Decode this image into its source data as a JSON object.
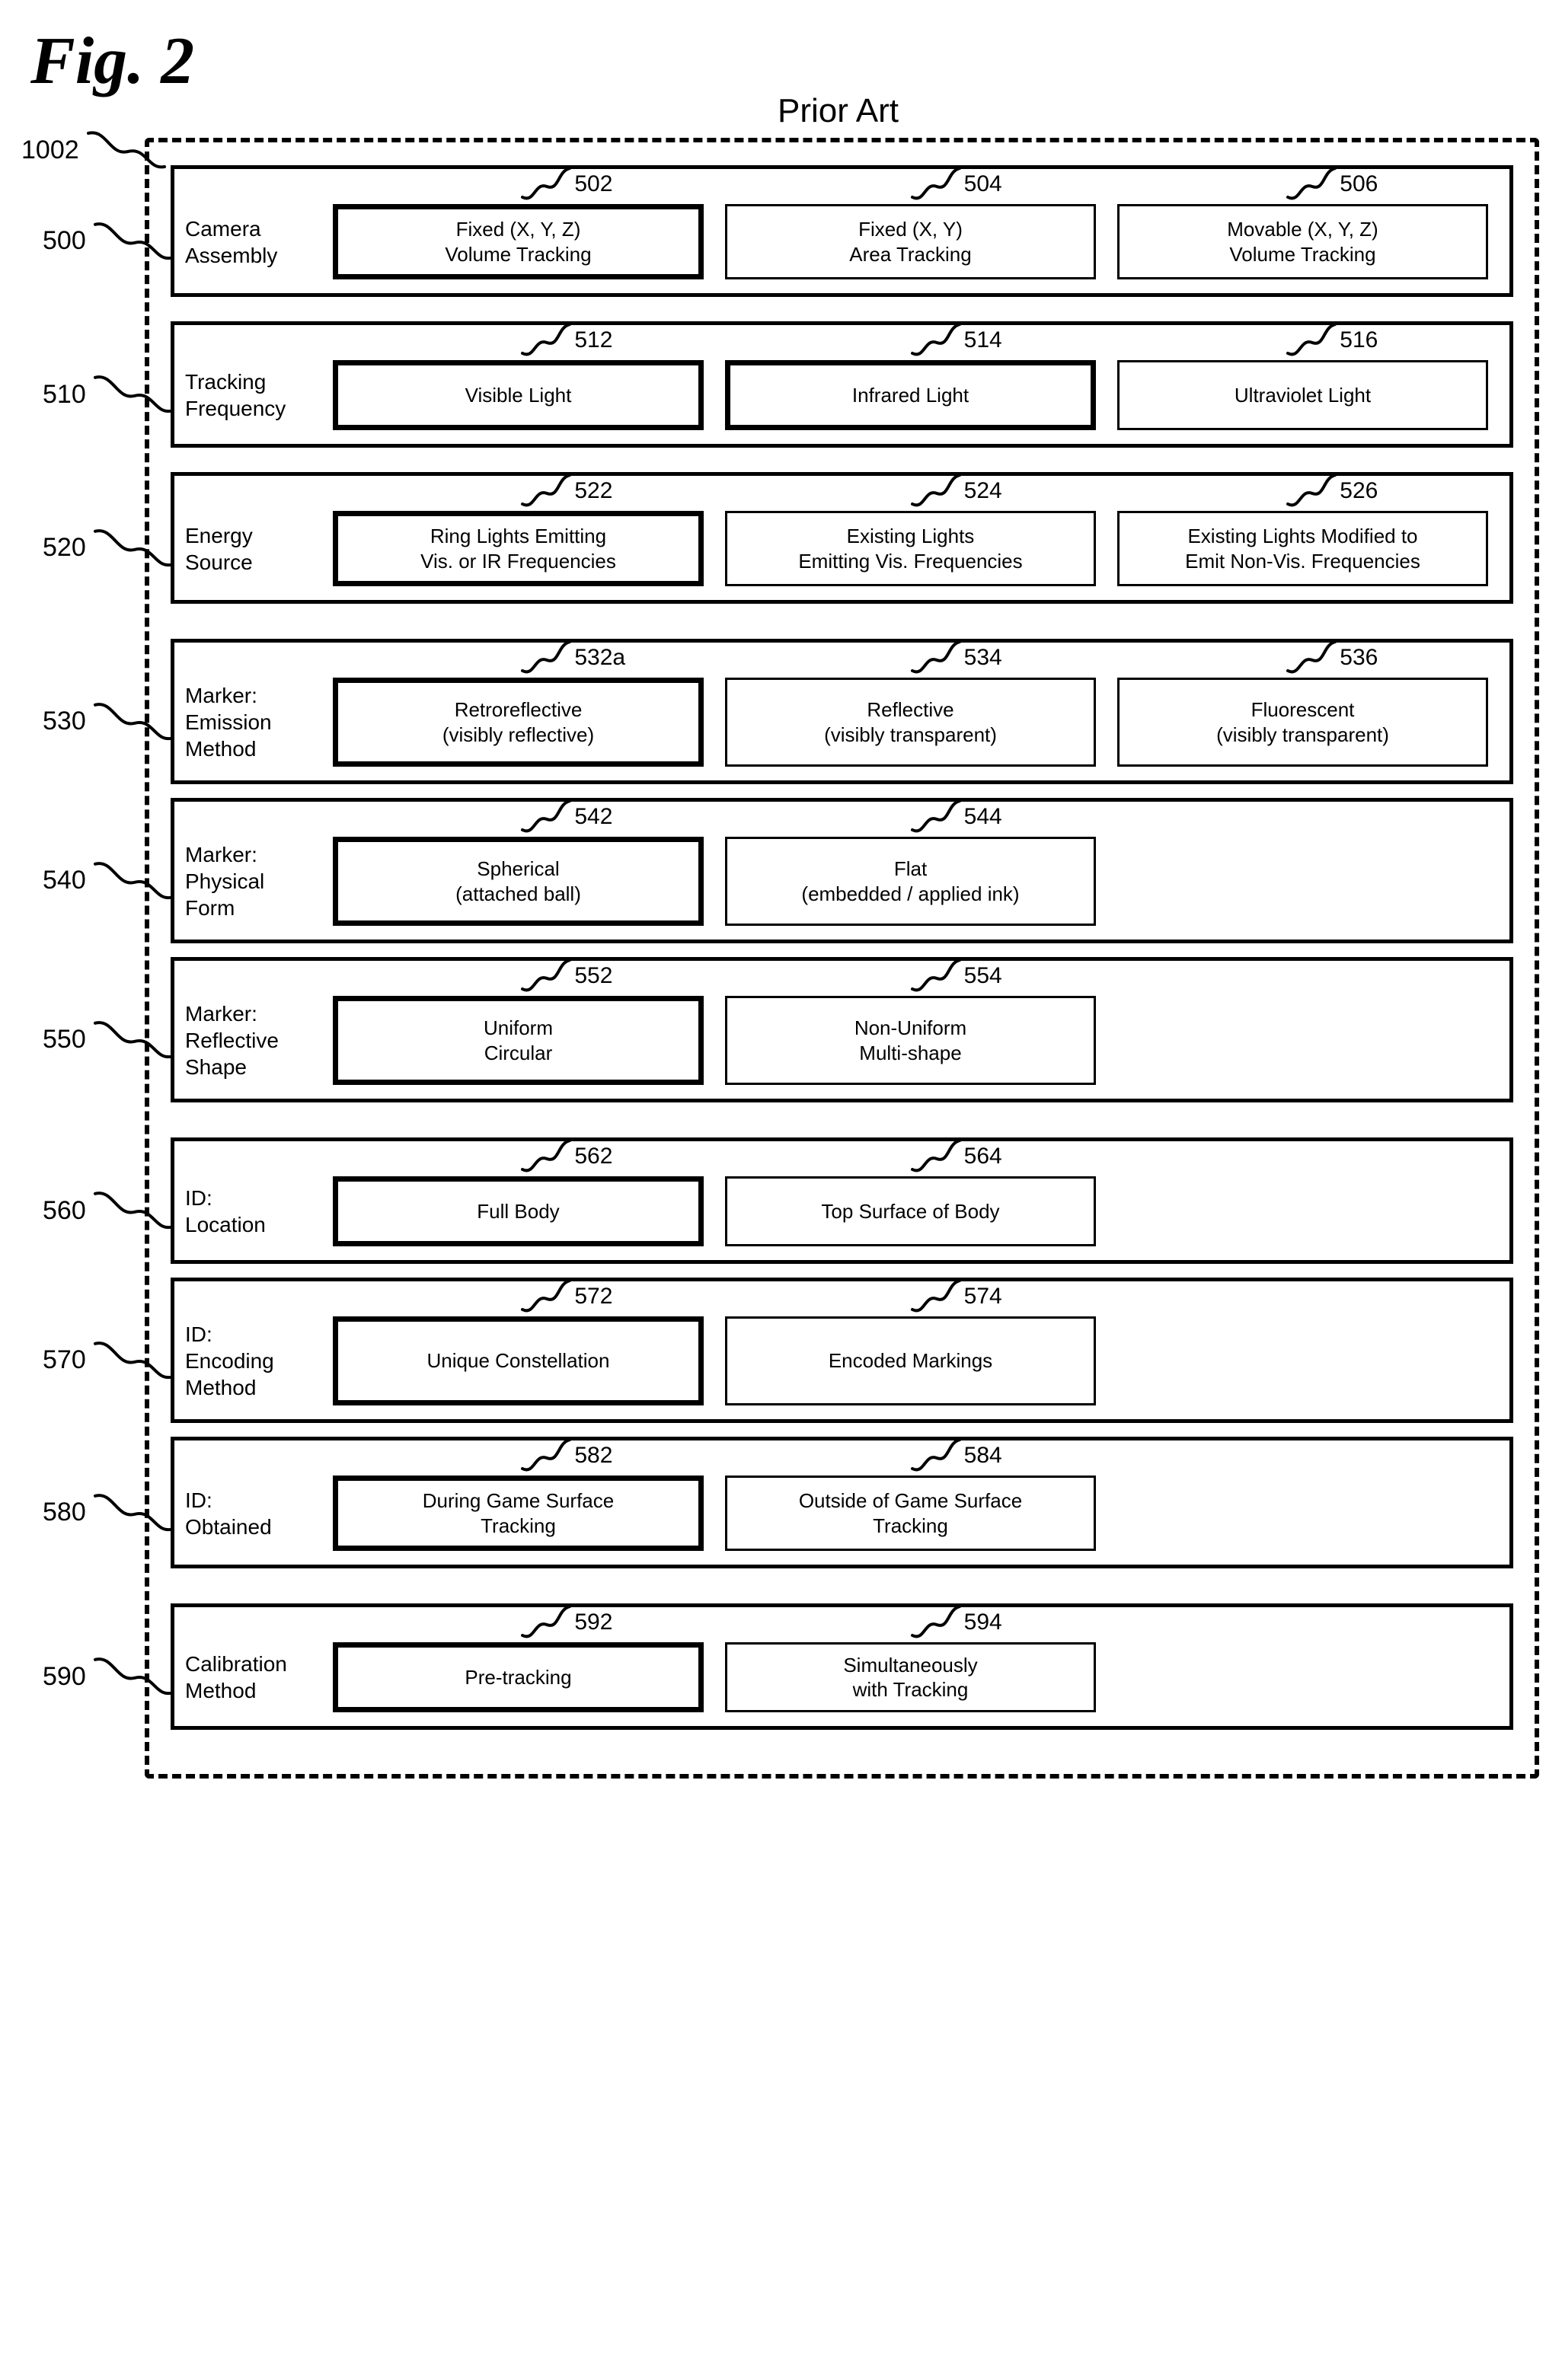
{
  "title": "Fig. 2",
  "subtitle": "Prior Art",
  "box_ref": "1002",
  "rows": [
    {
      "ref": "500",
      "label": "Camera Assembly",
      "gap_above": false,
      "tight": false,
      "options": [
        {
          "ref": "502",
          "text": "Fixed (X, Y, Z)\nVolume Tracking",
          "bold": true
        },
        {
          "ref": "504",
          "text": "Fixed (X, Y)\nArea Tracking",
          "bold": false
        },
        {
          "ref": "506",
          "text": "Movable (X, Y, Z)\nVolume Tracking",
          "bold": false
        }
      ]
    },
    {
      "ref": "510",
      "label": "Tracking Frequency",
      "gap_above": false,
      "tight": false,
      "options": [
        {
          "ref": "512",
          "text": "Visible Light",
          "bold": true
        },
        {
          "ref": "514",
          "text": "Infrared Light",
          "bold": true
        },
        {
          "ref": "516",
          "text": "Ultraviolet Light",
          "bold": false
        }
      ]
    },
    {
      "ref": "520",
      "label": "Energy Source",
      "gap_above": false,
      "tight": false,
      "options": [
        {
          "ref": "522",
          "text": "Ring Lights Emitting\nVis. or IR Frequencies",
          "bold": true
        },
        {
          "ref": "524",
          "text": "Existing Lights\nEmitting Vis. Frequencies",
          "bold": false
        },
        {
          "ref": "526",
          "text": "Existing Lights Modified to\nEmit Non-Vis. Frequencies",
          "bold": false
        }
      ]
    },
    {
      "ref": "530",
      "label": "Marker:\nEmission Method",
      "gap_above": true,
      "tight": true,
      "options": [
        {
          "ref": "532a",
          "text": "Retroreflective\n(visibly reflective)",
          "bold": true
        },
        {
          "ref": "534",
          "text": "Reflective\n(visibly transparent)",
          "bold": false
        },
        {
          "ref": "536",
          "text": "Fluorescent\n(visibly transparent)",
          "bold": false
        }
      ]
    },
    {
      "ref": "540",
      "label": "Marker:\nPhysical Form",
      "gap_above": false,
      "tight": true,
      "options": [
        {
          "ref": "542",
          "text": "Spherical\n(attached ball)",
          "bold": true
        },
        {
          "ref": "544",
          "text": "Flat\n(embedded / applied ink)",
          "bold": false
        }
      ]
    },
    {
      "ref": "550",
      "label": "Marker:\nReflective Shape",
      "gap_above": false,
      "tight": false,
      "options": [
        {
          "ref": "552",
          "text": "Uniform\nCircular",
          "bold": true
        },
        {
          "ref": "554",
          "text": "Non-Uniform\nMulti-shape",
          "bold": false
        }
      ]
    },
    {
      "ref": "560",
      "label": "ID:\nLocation",
      "gap_above": true,
      "tight": true,
      "options": [
        {
          "ref": "562",
          "text": "Full Body",
          "bold": true
        },
        {
          "ref": "564",
          "text": "Top Surface of Body",
          "bold": false
        }
      ]
    },
    {
      "ref": "570",
      "label": "ID:\nEncoding Method",
      "gap_above": false,
      "tight": true,
      "options": [
        {
          "ref": "572",
          "text": "Unique Constellation",
          "bold": true
        },
        {
          "ref": "574",
          "text": "Encoded Markings",
          "bold": false
        }
      ]
    },
    {
      "ref": "580",
      "label": "ID:\nObtained",
      "gap_above": false,
      "tight": false,
      "options": [
        {
          "ref": "582",
          "text": "During Game Surface\nTracking",
          "bold": true
        },
        {
          "ref": "584",
          "text": "Outside of Game Surface\nTracking",
          "bold": false
        }
      ]
    },
    {
      "ref": "590",
      "label": "Calibration Method",
      "gap_above": true,
      "tight": false,
      "options": [
        {
          "ref": "592",
          "text": "Pre-tracking",
          "bold": true
        },
        {
          "ref": "594",
          "text": "Simultaneously\nwith Tracking",
          "bold": false
        }
      ]
    }
  ],
  "style": {
    "squiggle_stroke": "#000000",
    "squiggle_width": 4,
    "border_color": "#000000",
    "bg": "#ffffff"
  }
}
